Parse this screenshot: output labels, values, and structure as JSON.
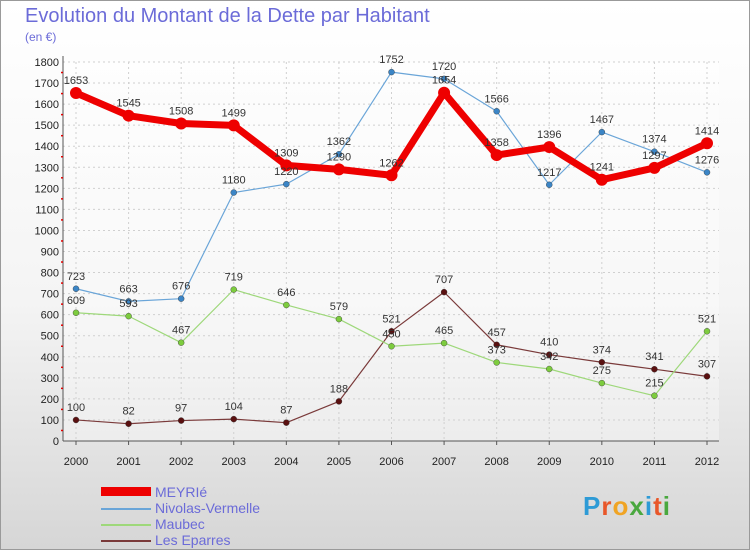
{
  "title": "Evolution du Montant de la Dette par Habitant",
  "subtitle": "(en €)",
  "logo": {
    "letters": [
      {
        "ch": "P",
        "color": "#2e9bd6"
      },
      {
        "ch": "r",
        "color": "#e8572a"
      },
      {
        "ch": "o",
        "color": "#f0a424"
      },
      {
        "ch": "x",
        "color": "#4aa83f"
      },
      {
        "ch": "i",
        "color": "#2e9bd6"
      },
      {
        "ch": "t",
        "color": "#e8572a"
      },
      {
        "ch": "i",
        "color": "#4aa83f"
      }
    ]
  },
  "chart_data": {
    "type": "line",
    "x": [
      "2000",
      "2001",
      "2002",
      "2003",
      "2004",
      "2005",
      "2006",
      "2007",
      "2008",
      "2009",
      "2010",
      "2011",
      "2012"
    ],
    "ylim": [
      0,
      1800
    ],
    "yticks": [
      0,
      100,
      200,
      300,
      400,
      500,
      600,
      700,
      800,
      900,
      1000,
      1100,
      1200,
      1300,
      1400,
      1500,
      1600,
      1700,
      1800
    ],
    "grid": true,
    "legend_position": "bottom-left",
    "series": [
      {
        "name": "MEYRIé",
        "color": "#ee0000",
        "values": [
          1653,
          1545,
          1508,
          1499,
          1309,
          1290,
          1262,
          1654,
          1358,
          1396,
          1241,
          1297,
          1414
        ]
      },
      {
        "name": "Nivolas-Vermelle",
        "color": "#6aa5d8",
        "marker": "#3b85c6",
        "values": [
          723,
          663,
          676,
          1180,
          1220,
          1362,
          1752,
          1720,
          1566,
          1217,
          1467,
          1374,
          1276
        ]
      },
      {
        "name": "Maubec",
        "color": "#9ed87a",
        "marker": "#7dcc3e",
        "values": [
          609,
          593,
          467,
          719,
          646,
          579,
          450,
          465,
          373,
          342,
          275,
          215,
          521
        ]
      },
      {
        "name": "Les Eparres",
        "color": "#7a3a3a",
        "marker": "#5a1010",
        "values": [
          100,
          82,
          97,
          104,
          87,
          188,
          521,
          707,
          457,
          410,
          374,
          341,
          307
        ]
      }
    ]
  }
}
